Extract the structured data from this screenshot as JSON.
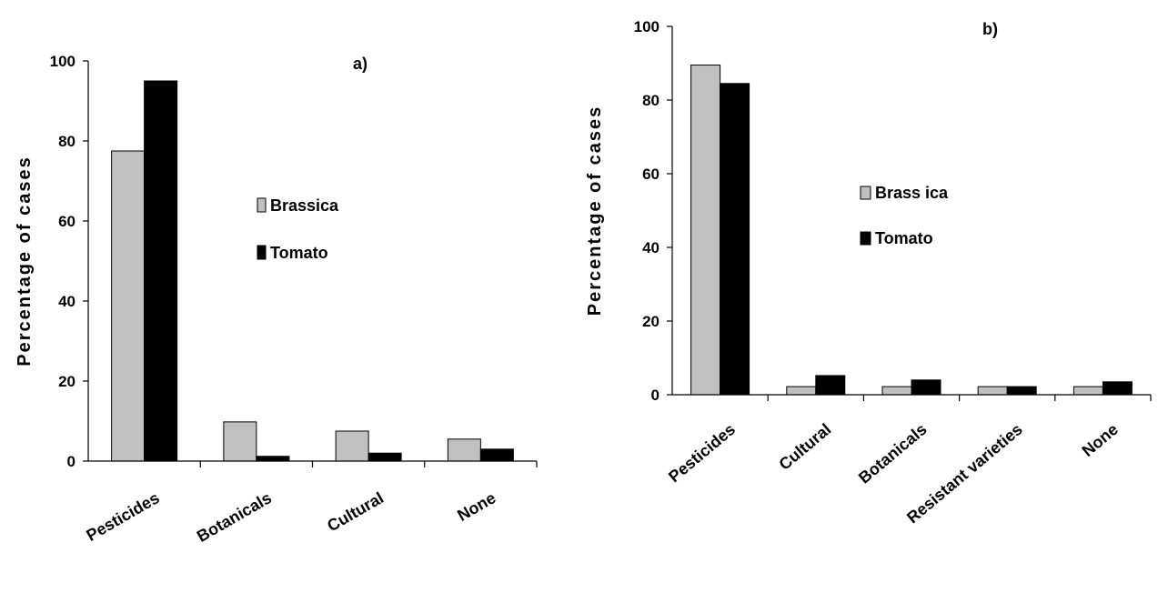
{
  "chart_data": [
    {
      "type": "bar",
      "panel_label": "a)",
      "ylabel": "Percentage of cases",
      "ylim": [
        0,
        100
      ],
      "yticks": [
        0,
        20,
        40,
        60,
        80,
        100
      ],
      "categories": [
        "Pesticides",
        "Botanicals",
        "Cultural",
        "None"
      ],
      "series": [
        {
          "name": "Brassica",
          "color": "#c0c0c0",
          "values": [
            77.5,
            9.8,
            7.5,
            5.5
          ]
        },
        {
          "name": "Tomato",
          "color": "#000000",
          "values": [
            95,
            1.2,
            2,
            3
          ]
        }
      ],
      "legend_position": "center-right",
      "grid": false
    },
    {
      "type": "bar",
      "panel_label": "b)",
      "ylabel": "Percentage of cases",
      "ylim": [
        0,
        100
      ],
      "yticks": [
        0,
        20,
        40,
        60,
        80,
        100
      ],
      "categories": [
        "Pesticides",
        "Cultural",
        "Botanicals",
        "Resistant varieties",
        "None"
      ],
      "series": [
        {
          "name": "Brass ica",
          "color": "#c0c0c0",
          "values": [
            89.5,
            2.2,
            2.2,
            2.2,
            2.2
          ]
        },
        {
          "name": "Tomato",
          "color": "#000000",
          "values": [
            84.5,
            5.2,
            4,
            2.2,
            3.5
          ]
        }
      ],
      "legend_position": "center-right",
      "grid": false
    }
  ]
}
